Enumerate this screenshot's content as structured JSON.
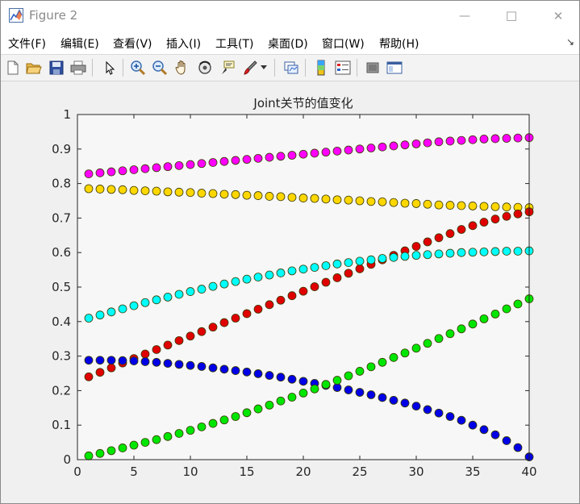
{
  "window": {
    "title": "Figure 2",
    "controls": {
      "minimize": "—",
      "maximize": "☐",
      "close": "✕"
    }
  },
  "menubar": {
    "items": [
      "文件(F)",
      "编辑(E)",
      "查看(V)",
      "插入(I)",
      "工具(T)",
      "桌面(D)",
      "窗口(W)",
      "帮助(H)"
    ],
    "dock_icon": "↘"
  },
  "toolbar": {
    "icons": [
      "new-figure-icon",
      "open-file-icon",
      "save-icon",
      "print-icon",
      "pointer-icon",
      "zoom-in-icon",
      "zoom-out-icon",
      "pan-hand-icon",
      "rotate-3d-icon",
      "data-cursor-icon",
      "brush-icon",
      "link-plot-icon",
      "colorbar-icon",
      "legend-icon",
      "hide-plot-tools-icon",
      "show-plot-tools-icon"
    ]
  },
  "colors": {
    "axes_background": "#f7f7f7",
    "magenta": "#ff00ff",
    "yellow": "#ffd700",
    "red": "#e00000",
    "cyan": "#00ffff",
    "blue": "#0000e6",
    "green": "#00e600"
  },
  "chart_data": {
    "type": "scatter",
    "title": "Joint关节的值变化",
    "xlabel": "",
    "ylabel": "",
    "xlim": [
      0,
      40
    ],
    "ylim": [
      0,
      1
    ],
    "xticks": [
      "0",
      "5",
      "10",
      "15",
      "20",
      "25",
      "30",
      "35",
      "40"
    ],
    "yticks": [
      "0",
      "0.1",
      "0.2",
      "0.3",
      "0.4",
      "0.5",
      "0.6",
      "0.7",
      "0.8",
      "0.9",
      "1"
    ],
    "grid": false,
    "x": [
      1,
      2,
      3,
      4,
      5,
      6,
      7,
      8,
      9,
      10,
      11,
      12,
      13,
      14,
      15,
      16,
      17,
      18,
      19,
      20,
      21,
      22,
      23,
      24,
      25,
      26,
      27,
      28,
      29,
      30,
      31,
      32,
      33,
      34,
      35,
      36,
      37,
      38,
      39,
      40
    ],
    "series": [
      {
        "color": "magenta",
        "values": [
          0.828,
          0.831,
          0.834,
          0.837,
          0.84,
          0.843,
          0.846,
          0.849,
          0.852,
          0.855,
          0.858,
          0.861,
          0.864,
          0.867,
          0.87,
          0.873,
          0.876,
          0.879,
          0.882,
          0.885,
          0.888,
          0.891,
          0.894,
          0.897,
          0.9,
          0.903,
          0.906,
          0.909,
          0.912,
          0.915,
          0.918,
          0.921,
          0.923,
          0.925,
          0.927,
          0.929,
          0.93,
          0.931,
          0.932,
          0.933
        ]
      },
      {
        "color": "yellow",
        "values": [
          0.785,
          0.784,
          0.783,
          0.782,
          0.78,
          0.779,
          0.778,
          0.776,
          0.775,
          0.774,
          0.772,
          0.771,
          0.769,
          0.768,
          0.766,
          0.765,
          0.763,
          0.762,
          0.76,
          0.758,
          0.757,
          0.755,
          0.753,
          0.752,
          0.75,
          0.748,
          0.747,
          0.745,
          0.743,
          0.742,
          0.74,
          0.738,
          0.737,
          0.736,
          0.735,
          0.734,
          0.733,
          0.732,
          0.731,
          0.73
        ]
      },
      {
        "color": "red",
        "values": [
          0.24,
          0.253,
          0.266,
          0.28,
          0.293,
          0.306,
          0.319,
          0.332,
          0.345,
          0.358,
          0.371,
          0.384,
          0.397,
          0.41,
          0.423,
          0.436,
          0.449,
          0.462,
          0.475,
          0.488,
          0.501,
          0.514,
          0.527,
          0.54,
          0.553,
          0.566,
          0.579,
          0.592,
          0.605,
          0.618,
          0.631,
          0.643,
          0.655,
          0.667,
          0.678,
          0.688,
          0.697,
          0.705,
          0.712,
          0.718
        ]
      },
      {
        "color": "cyan",
        "values": [
          0.41,
          0.419,
          0.428,
          0.437,
          0.446,
          0.455,
          0.463,
          0.471,
          0.479,
          0.487,
          0.494,
          0.502,
          0.509,
          0.516,
          0.523,
          0.529,
          0.535,
          0.541,
          0.547,
          0.552,
          0.557,
          0.562,
          0.567,
          0.571,
          0.575,
          0.579,
          0.583,
          0.586,
          0.589,
          0.592,
          0.594,
          0.596,
          0.598,
          0.6,
          0.601,
          0.602,
          0.603,
          0.604,
          0.604,
          0.605
        ]
      },
      {
        "color": "blue",
        "values": [
          0.288,
          0.288,
          0.288,
          0.287,
          0.286,
          0.284,
          0.282,
          0.279,
          0.276,
          0.273,
          0.27,
          0.266,
          0.262,
          0.258,
          0.254,
          0.249,
          0.244,
          0.239,
          0.233,
          0.227,
          0.221,
          0.215,
          0.209,
          0.202,
          0.195,
          0.188,
          0.18,
          0.172,
          0.164,
          0.155,
          0.145,
          0.135,
          0.125,
          0.114,
          0.1,
          0.087,
          0.072,
          0.055,
          0.035,
          0.008
        ]
      },
      {
        "color": "green",
        "values": [
          0.011,
          0.018,
          0.026,
          0.034,
          0.042,
          0.05,
          0.058,
          0.067,
          0.076,
          0.085,
          0.095,
          0.105,
          0.115,
          0.125,
          0.136,
          0.147,
          0.158,
          0.17,
          0.181,
          0.193,
          0.205,
          0.218,
          0.23,
          0.243,
          0.256,
          0.269,
          0.282,
          0.296,
          0.309,
          0.323,
          0.337,
          0.351,
          0.365,
          0.379,
          0.393,
          0.408,
          0.422,
          0.437,
          0.451,
          0.466
        ]
      }
    ]
  }
}
